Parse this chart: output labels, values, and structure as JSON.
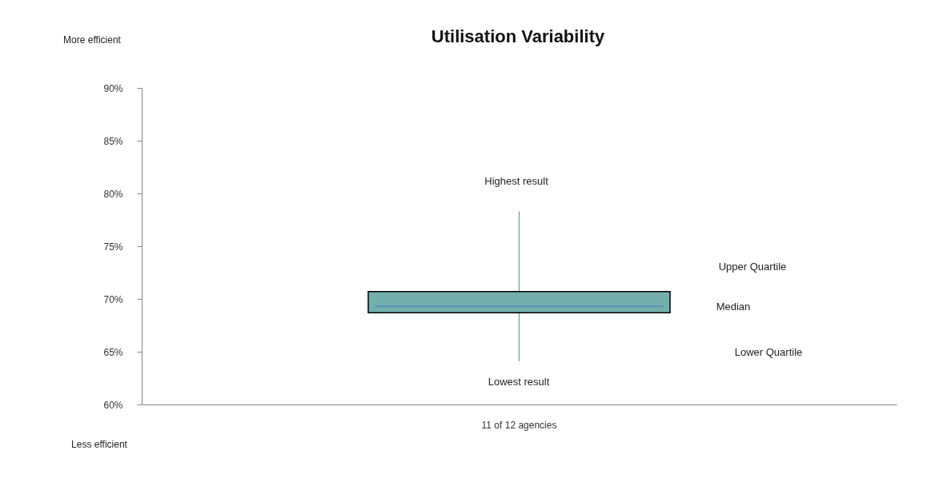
{
  "chart_data": {
    "type": "box",
    "title": "Utilisation Variability",
    "categories": [
      "11 of 12 agencies"
    ],
    "series": [
      {
        "color": "#74afaf",
        "boxes": [
          {
            "low": 64.1,
            "q1": 68.7,
            "median": 69.3,
            "q3": 70.7,
            "high": 78.3
          }
        ]
      }
    ],
    "ylim": [
      60,
      90
    ],
    "yticks": [
      {
        "value": 60,
        "label": "60%"
      },
      {
        "value": 65,
        "label": "65%"
      },
      {
        "value": 70,
        "label": "70%"
      },
      {
        "value": 75,
        "label": "75%"
      },
      {
        "value": 80,
        "label": "80%"
      },
      {
        "value": 85,
        "label": "85%"
      },
      {
        "value": 90,
        "label": "90%"
      }
    ],
    "annotations": [
      "More efficient",
      "Less efficient",
      "Highest result",
      "Upper Quartile",
      "Median",
      "Lower Quartile",
      "Lowest result"
    ]
  }
}
